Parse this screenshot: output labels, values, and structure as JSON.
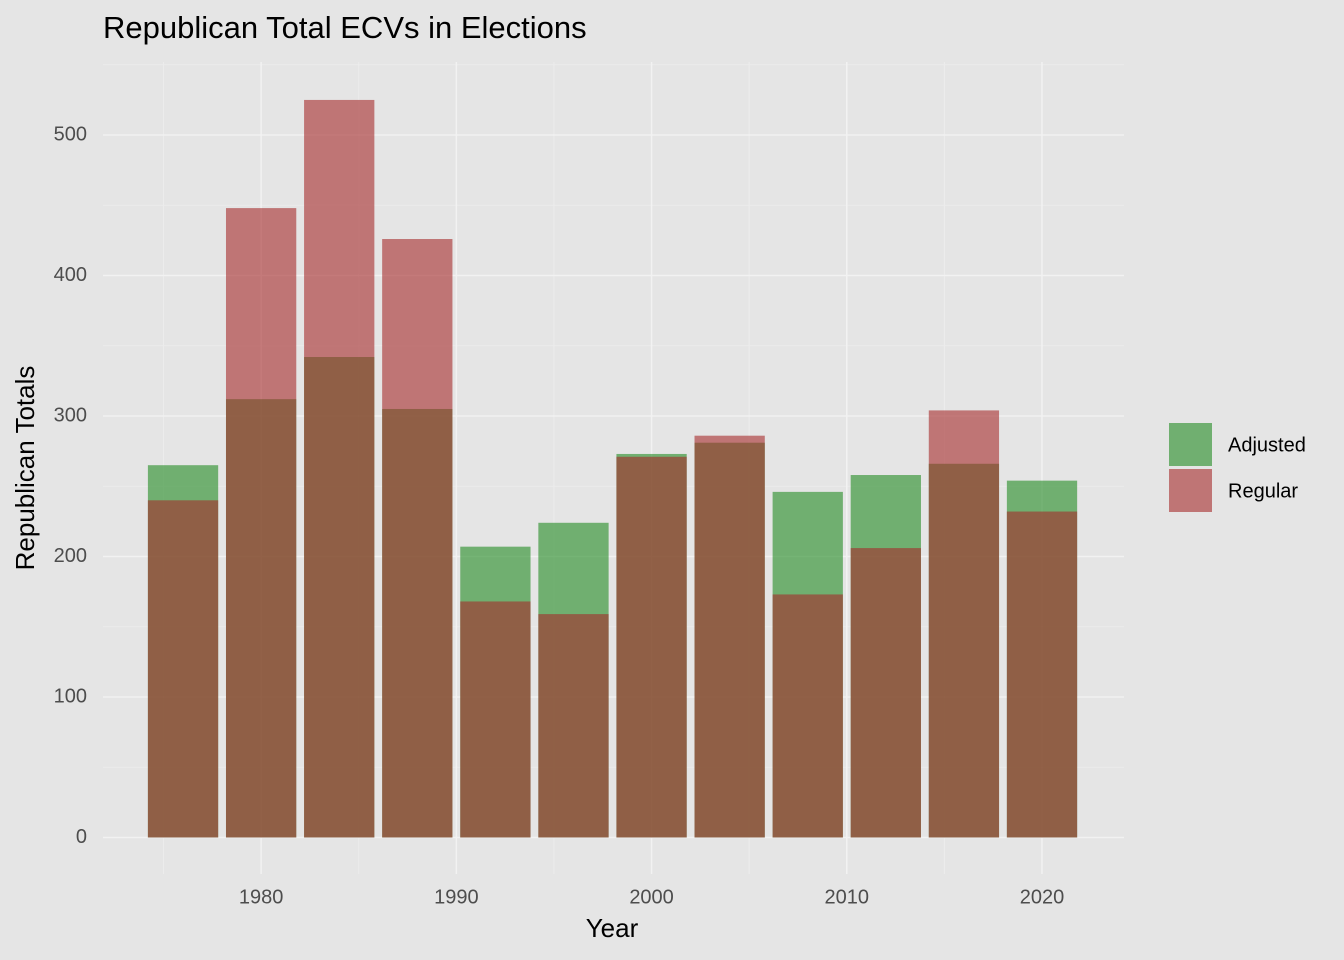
{
  "chart_data": {
    "type": "bar",
    "title": "Republican Total ECVs in Elections",
    "x_label": "Year",
    "y_label": "Republican Totals",
    "x": [
      1976,
      1980,
      1984,
      1988,
      1992,
      1996,
      2000,
      2004,
      2008,
      2012,
      2016,
      2020
    ],
    "bar_width": 3.6,
    "overlap": true,
    "opacity": 0.6,
    "series": [
      {
        "name": "Adjusted",
        "color": "#228b22",
        "values": [
          265,
          312,
          342,
          305,
          207,
          224,
          273,
          281,
          246,
          258,
          266,
          254
        ]
      },
      {
        "name": "Regular",
        "color": "#a52a2a",
        "values": [
          240,
          448,
          525,
          426,
          168,
          159,
          271,
          286,
          173,
          206,
          304,
          232
        ]
      }
    ],
    "xlim": [
      1971.9,
      2024.2
    ],
    "xticks": [
      1980,
      1990,
      2000,
      2010,
      2020
    ],
    "ylim": [
      -26,
      552
    ],
    "yticks": [
      0,
      100,
      200,
      300,
      400,
      500
    ],
    "grid": true,
    "legend": "right"
  }
}
